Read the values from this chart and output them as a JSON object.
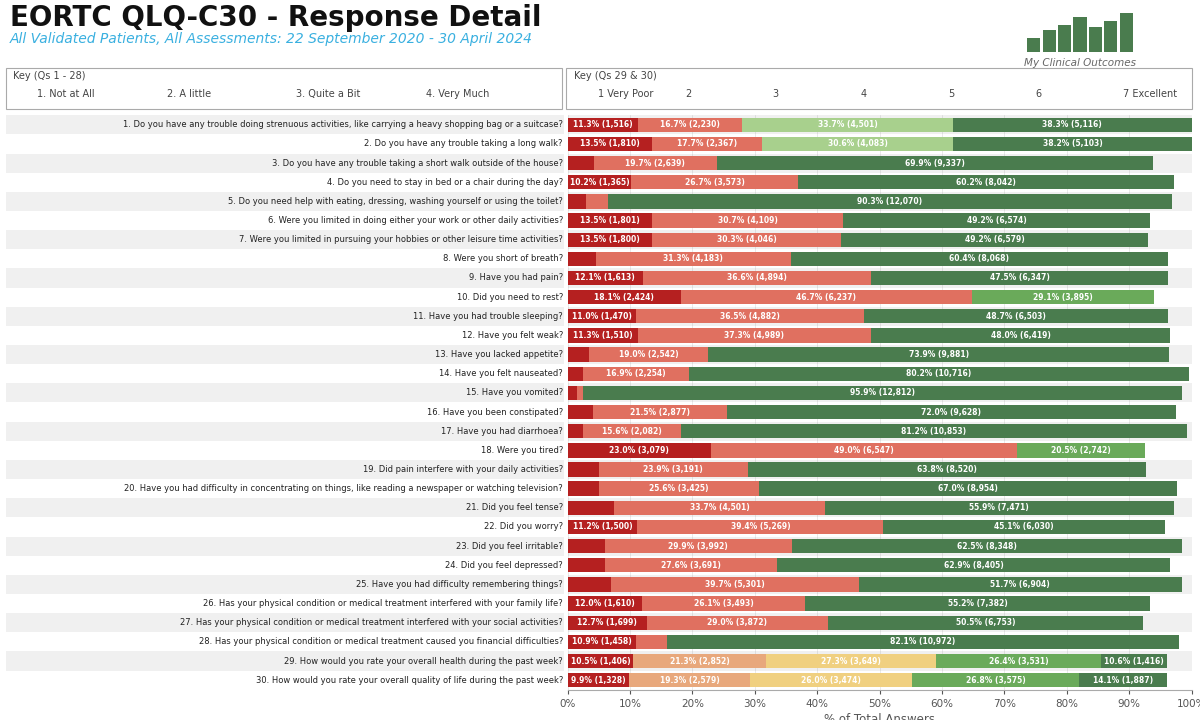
{
  "title": "EORTC QLQ-C30 - Response Detail",
  "subtitle": "All Validated Patients, All Assessments: 22 September 2020 - 30 April 2024",
  "xlabel": "% of Total Answers",
  "questions": [
    "1. Do you have any trouble doing strenuous activities, like carrying a heavy shopping bag or a suitcase?",
    "2. Do you have any trouble taking a long walk?",
    "3. Do you have any trouble taking a short walk outside of the house?",
    "4. Do you need to stay in bed or a chair during the day?",
    "5. Do you need help with eating, dressing, washing yourself or using the toilet?",
    "6. Were you limited in doing either your work or other daily activities?",
    "7. Were you limited in pursuing your hobbies or other leisure time activities?",
    "8. Were you short of breath?",
    "9. Have you had pain?",
    "10. Did you need to rest?",
    "11. Have you had trouble sleeping?",
    "12. Have you felt weak?",
    "13. Have you lacked appetite?",
    "14. Have you felt nauseated?",
    "15. Have you vomited?",
    "16. Have you been constipated?",
    "17. Have you had diarrhoea?",
    "18. Were you tired?",
    "19. Did pain interfere with your daily activities?",
    "20. Have you had difficulty in concentrating on things, like reading a newspaper or watching television?",
    "21. Did you feel tense?",
    "22. Did you worry?",
    "23. Did you feel irritable?",
    "24. Did you feel depressed?",
    "25. Have you had difficulty remembering things?",
    "26. Has your physical condition or medical treatment interfered with your family life?",
    "27. Has your physical condition or medical treatment interfered with your social activities?",
    "28. Has your physical condition or medical treatment caused you financial difficulties?",
    "29. How would you rate your overall health during the past week?",
    "30. How would you rate your overall quality of life during the past week?"
  ],
  "key_q1_28": [
    {
      "color": "#4a7c4e",
      "label": "1. Not at All"
    },
    {
      "color": "#a8d08d",
      "label": "2. A little"
    },
    {
      "color": "#e07060",
      "label": "3. Quite a Bit"
    },
    {
      "color": "#b52020",
      "label": "4. Very Much"
    }
  ],
  "key_q29_30": [
    {
      "color": "#b52020",
      "label": "1 Very Poor"
    },
    {
      "color": "#e07060",
      "label": "2"
    },
    {
      "color": "#e8a87c",
      "label": "3"
    },
    {
      "color": "#f0d080",
      "label": "4"
    },
    {
      "color": "#a8d08d",
      "label": "5"
    },
    {
      "color": "#6aaa5a",
      "label": "6"
    },
    {
      "color": "#4a7c4e",
      "label": "7 Excellent"
    }
  ],
  "rows": [
    {
      "segs": [
        {
          "v": 11.3,
          "c": "#b52020",
          "l": "11.3% (1,516)"
        },
        {
          "v": 16.7,
          "c": "#e07060",
          "l": "16.7% (2,230)"
        },
        {
          "v": 33.7,
          "c": "#a8d08d",
          "l": "33.7% (4,501)"
        },
        {
          "v": 38.3,
          "c": "#4a7c4e",
          "l": "38.3% (5,116)"
        }
      ]
    },
    {
      "segs": [
        {
          "v": 13.5,
          "c": "#b52020",
          "l": "13.5% (1,810)"
        },
        {
          "v": 17.7,
          "c": "#e07060",
          "l": "17.7% (2,367)"
        },
        {
          "v": 30.6,
          "c": "#a8d08d",
          "l": "30.6% (4,083)"
        },
        {
          "v": 38.2,
          "c": "#4a7c4e",
          "l": "38.2% (5,103)"
        }
      ]
    },
    {
      "segs": [
        {
          "v": 4.2,
          "c": "#b52020",
          "l": ""
        },
        {
          "v": 19.7,
          "c": "#e07060",
          "l": "19.7% (2,639)"
        },
        {
          "v": 69.9,
          "c": "#4a7c4e",
          "l": "69.9% (9,337)"
        }
      ]
    },
    {
      "segs": [
        {
          "v": 10.2,
          "c": "#b52020",
          "l": "10.2% (1,365)"
        },
        {
          "v": 26.7,
          "c": "#e07060",
          "l": "26.7% (3,573)"
        },
        {
          "v": 60.2,
          "c": "#4a7c4e",
          "l": "60.2% (8,042)"
        }
      ]
    },
    {
      "segs": [
        {
          "v": 3.0,
          "c": "#b52020",
          "l": ""
        },
        {
          "v": 3.5,
          "c": "#e07060",
          "l": ""
        },
        {
          "v": 90.3,
          "c": "#4a7c4e",
          "l": "90.3% (12,070)"
        }
      ]
    },
    {
      "segs": [
        {
          "v": 13.5,
          "c": "#b52020",
          "l": "13.5% (1,801)"
        },
        {
          "v": 30.7,
          "c": "#e07060",
          "l": "30.7% (4,109)"
        },
        {
          "v": 49.2,
          "c": "#4a7c4e",
          "l": "49.2% (6,574)"
        }
      ]
    },
    {
      "segs": [
        {
          "v": 13.5,
          "c": "#b52020",
          "l": "13.5% (1,800)"
        },
        {
          "v": 30.3,
          "c": "#e07060",
          "l": "30.3% (4,046)"
        },
        {
          "v": 49.2,
          "c": "#4a7c4e",
          "l": "49.2% (6,579)"
        }
      ]
    },
    {
      "segs": [
        {
          "v": 4.5,
          "c": "#b52020",
          "l": ""
        },
        {
          "v": 31.3,
          "c": "#e07060",
          "l": "31.3% (4,183)"
        },
        {
          "v": 60.4,
          "c": "#4a7c4e",
          "l": "60.4% (8,068)"
        }
      ]
    },
    {
      "segs": [
        {
          "v": 12.1,
          "c": "#b52020",
          "l": "12.1% (1,613)"
        },
        {
          "v": 36.6,
          "c": "#e07060",
          "l": "36.6% (4,894)"
        },
        {
          "v": 47.5,
          "c": "#4a7c4e",
          "l": "47.5% (6,347)"
        }
      ]
    },
    {
      "segs": [
        {
          "v": 18.1,
          "c": "#b52020",
          "l": "18.1% (2,424)"
        },
        {
          "v": 46.7,
          "c": "#e07060",
          "l": "46.7% (6,237)"
        },
        {
          "v": 29.1,
          "c": "#6aaa5a",
          "l": "29.1% (3,895)"
        }
      ]
    },
    {
      "segs": [
        {
          "v": 11.0,
          "c": "#b52020",
          "l": "11.0% (1,470)"
        },
        {
          "v": 36.5,
          "c": "#e07060",
          "l": "36.5% (4,882)"
        },
        {
          "v": 48.7,
          "c": "#4a7c4e",
          "l": "48.7% (6,503)"
        }
      ]
    },
    {
      "segs": [
        {
          "v": 11.3,
          "c": "#b52020",
          "l": "11.3% (1,510)"
        },
        {
          "v": 37.3,
          "c": "#e07060",
          "l": "37.3% (4,989)"
        },
        {
          "v": 48.0,
          "c": "#4a7c4e",
          "l": "48.0% (6,419)"
        }
      ]
    },
    {
      "segs": [
        {
          "v": 3.5,
          "c": "#b52020",
          "l": ""
        },
        {
          "v": 19.0,
          "c": "#e07060",
          "l": "19.0% (2,542)"
        },
        {
          "v": 73.9,
          "c": "#4a7c4e",
          "l": "73.9% (9,881)"
        }
      ]
    },
    {
      "segs": [
        {
          "v": 2.5,
          "c": "#b52020",
          "l": ""
        },
        {
          "v": 16.9,
          "c": "#e07060",
          "l": "16.9% (2,254)"
        },
        {
          "v": 80.2,
          "c": "#4a7c4e",
          "l": "80.2% (10,716)"
        }
      ]
    },
    {
      "segs": [
        {
          "v": 1.5,
          "c": "#b52020",
          "l": ""
        },
        {
          "v": 1.0,
          "c": "#e07060",
          "l": ""
        },
        {
          "v": 95.9,
          "c": "#4a7c4e",
          "l": "95.9% (12,812)"
        }
      ]
    },
    {
      "segs": [
        {
          "v": 4.0,
          "c": "#b52020",
          "l": ""
        },
        {
          "v": 21.5,
          "c": "#e07060",
          "l": "21.5% (2,877)"
        },
        {
          "v": 72.0,
          "c": "#4a7c4e",
          "l": "72.0% (9,628)"
        }
      ]
    },
    {
      "segs": [
        {
          "v": 2.5,
          "c": "#b52020",
          "l": ""
        },
        {
          "v": 15.6,
          "c": "#e07060",
          "l": "15.6% (2,082)"
        },
        {
          "v": 81.2,
          "c": "#4a7c4e",
          "l": "81.2% (10,853)"
        }
      ]
    },
    {
      "segs": [
        {
          "v": 23.0,
          "c": "#b52020",
          "l": "23.0% (3,079)"
        },
        {
          "v": 49.0,
          "c": "#e07060",
          "l": "49.0% (6,547)"
        },
        {
          "v": 20.5,
          "c": "#6aaa5a",
          "l": "20.5% (2,742)"
        }
      ]
    },
    {
      "segs": [
        {
          "v": 5.0,
          "c": "#b52020",
          "l": ""
        },
        {
          "v": 23.9,
          "c": "#e07060",
          "l": "23.9% (3,191)"
        },
        {
          "v": 63.8,
          "c": "#4a7c4e",
          "l": "63.8% (8,520)"
        }
      ]
    },
    {
      "segs": [
        {
          "v": 5.0,
          "c": "#b52020",
          "l": ""
        },
        {
          "v": 25.6,
          "c": "#e07060",
          "l": "25.6% (3,425)"
        },
        {
          "v": 67.0,
          "c": "#4a7c4e",
          "l": "67.0% (8,954)"
        }
      ]
    },
    {
      "segs": [
        {
          "v": 7.5,
          "c": "#b52020",
          "l": ""
        },
        {
          "v": 33.7,
          "c": "#e07060",
          "l": "33.7% (4,501)"
        },
        {
          "v": 55.9,
          "c": "#4a7c4e",
          "l": "55.9% (7,471)"
        }
      ]
    },
    {
      "segs": [
        {
          "v": 11.2,
          "c": "#b52020",
          "l": "11.2% (1,500)"
        },
        {
          "v": 39.4,
          "c": "#e07060",
          "l": "39.4% (5,269)"
        },
        {
          "v": 45.1,
          "c": "#4a7c4e",
          "l": "45.1% (6,030)"
        }
      ]
    },
    {
      "segs": [
        {
          "v": 6.0,
          "c": "#b52020",
          "l": ""
        },
        {
          "v": 29.9,
          "c": "#e07060",
          "l": "29.9% (3,992)"
        },
        {
          "v": 62.5,
          "c": "#4a7c4e",
          "l": "62.5% (8,348)"
        }
      ]
    },
    {
      "segs": [
        {
          "v": 6.0,
          "c": "#b52020",
          "l": ""
        },
        {
          "v": 27.6,
          "c": "#e07060",
          "l": "27.6% (3,691)"
        },
        {
          "v": 62.9,
          "c": "#4a7c4e",
          "l": "62.9% (8,405)"
        }
      ]
    },
    {
      "segs": [
        {
          "v": 7.0,
          "c": "#b52020",
          "l": ""
        },
        {
          "v": 39.7,
          "c": "#e07060",
          "l": "39.7% (5,301)"
        },
        {
          "v": 51.7,
          "c": "#4a7c4e",
          "l": "51.7% (6,904)"
        }
      ]
    },
    {
      "segs": [
        {
          "v": 12.0,
          "c": "#b52020",
          "l": "12.0% (1,610)"
        },
        {
          "v": 26.1,
          "c": "#e07060",
          "l": "26.1% (3,493)"
        },
        {
          "v": 55.2,
          "c": "#4a7c4e",
          "l": "55.2% (7,382)"
        }
      ]
    },
    {
      "segs": [
        {
          "v": 12.7,
          "c": "#b52020",
          "l": "12.7% (1,699)"
        },
        {
          "v": 29.0,
          "c": "#e07060",
          "l": "29.0% (3,872)"
        },
        {
          "v": 50.5,
          "c": "#4a7c4e",
          "l": "50.5% (6,753)"
        }
      ]
    },
    {
      "segs": [
        {
          "v": 10.9,
          "c": "#b52020",
          "l": "10.9% (1,458)"
        },
        {
          "v": 5.0,
          "c": "#e07060",
          "l": ""
        },
        {
          "v": 82.1,
          "c": "#4a7c4e",
          "l": "82.1% (10,972)"
        }
      ]
    },
    {
      "segs": [
        {
          "v": 10.5,
          "c": "#b52020",
          "l": "10.5% (1,406)"
        },
        {
          "v": 21.3,
          "c": "#e8a87c",
          "l": "21.3% (2,852)"
        },
        {
          "v": 27.3,
          "c": "#f0d080",
          "l": "27.3% (3,649)"
        },
        {
          "v": 26.4,
          "c": "#6aaa5a",
          "l": "26.4% (3,531)"
        },
        {
          "v": 10.6,
          "c": "#4a7c4e",
          "l": "10.6% (1,416)"
        }
      ]
    },
    {
      "segs": [
        {
          "v": 9.9,
          "c": "#b52020",
          "l": "9.9% (1,328)"
        },
        {
          "v": 19.3,
          "c": "#e8a87c",
          "l": "19.3% (2,579)"
        },
        {
          "v": 26.0,
          "c": "#f0d080",
          "l": "26.0% (3,474)"
        },
        {
          "v": 26.8,
          "c": "#6aaa5a",
          "l": "26.8% (3,575)"
        },
        {
          "v": 14.1,
          "c": "#4a7c4e",
          "l": "14.1% (1,887)"
        }
      ]
    }
  ],
  "logo_bars": [
    0.35,
    0.55,
    0.7,
    0.9,
    0.65,
    0.8,
    1.0
  ],
  "logo_color": "#4a7c4e",
  "logo_text": "My Clinical Outcomes",
  "alt_row_color": "#f0f0f0",
  "title_fontsize": 20,
  "subtitle_fontsize": 10,
  "question_fontsize": 6.0,
  "bar_label_fontsize": 5.5
}
